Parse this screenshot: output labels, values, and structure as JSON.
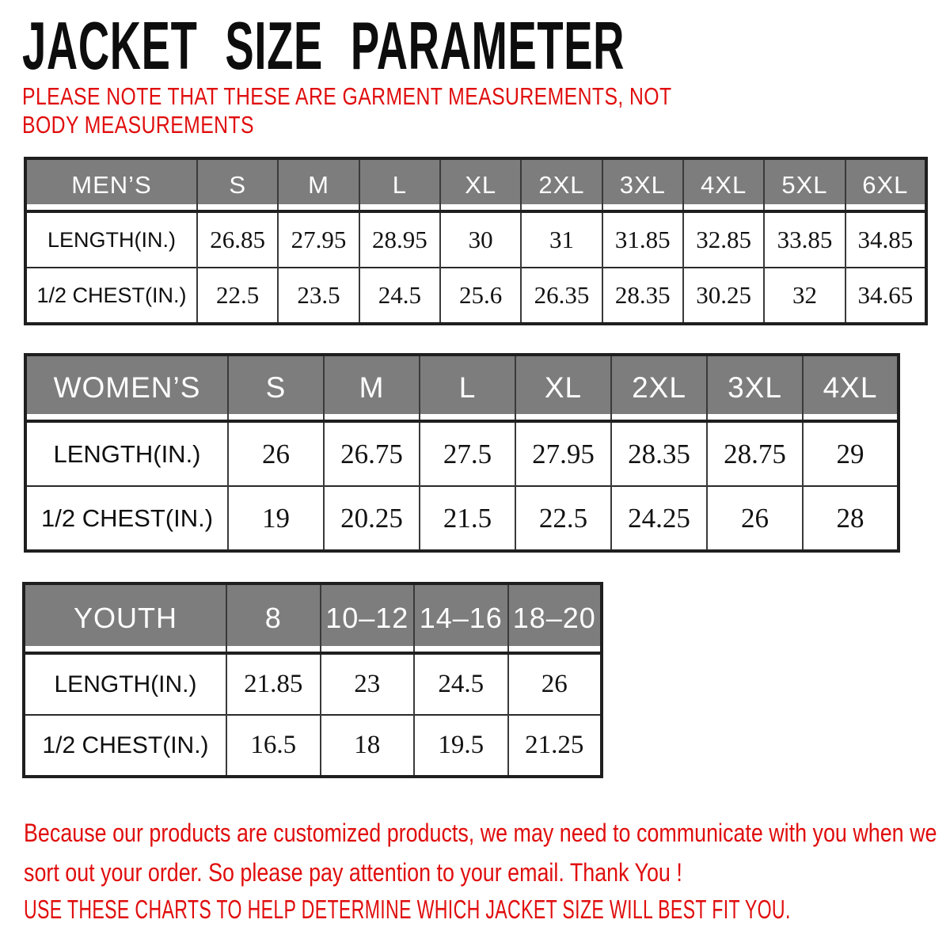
{
  "header": {
    "title": "JACKET SIZE PARAMETER",
    "note": "PLEASE NOTE THAT THESE ARE GARMENT MEASUREMENTS, NOT BODY MEASUREMENTS"
  },
  "chart_data": [
    {
      "type": "table",
      "id": "mens",
      "group_label": "MEN’S",
      "unit": "inches",
      "columns": [
        "S",
        "M",
        "L",
        "XL",
        "2XL",
        "3XL",
        "4XL",
        "5XL",
        "6XL"
      ],
      "rows": [
        {
          "label": "LENGTH(IN.)",
          "values": [
            26.85,
            27.95,
            28.95,
            30,
            31,
            31.85,
            32.85,
            33.85,
            34.85
          ]
        },
        {
          "label": "1/2 CHEST(IN.)",
          "values": [
            22.5,
            23.5,
            24.5,
            25.6,
            26.35,
            28.35,
            30.25,
            32,
            34.65
          ]
        }
      ]
    },
    {
      "type": "table",
      "id": "womens",
      "group_label": "WOMEN’S",
      "unit": "inches",
      "columns": [
        "S",
        "M",
        "L",
        "XL",
        "2XL",
        "3XL",
        "4XL"
      ],
      "rows": [
        {
          "label": "LENGTH(IN.)",
          "values": [
            26,
            26.75,
            27.5,
            27.95,
            28.35,
            28.75,
            29
          ]
        },
        {
          "label": "1/2 CHEST(IN.)",
          "values": [
            19,
            20.25,
            21.5,
            22.5,
            24.25,
            26,
            28
          ]
        }
      ]
    },
    {
      "type": "table",
      "id": "youth",
      "group_label": "YOUTH",
      "unit": "inches",
      "columns": [
        "8",
        "10–12",
        "14–16",
        "18–20"
      ],
      "rows": [
        {
          "label": "LENGTH(IN.)",
          "values": [
            21.85,
            23,
            24.5,
            26
          ]
        },
        {
          "label": "1/2 CHEST(IN.)",
          "values": [
            16.5,
            18,
            19.5,
            21.25
          ]
        }
      ]
    }
  ],
  "footer": {
    "line1": "Because our products are customized products, we may need to communicate with you when we sort out your order. So please pay attention to your email. Thank You !",
    "line2": "USE THESE CHARTS TO HELP DETERMINE WHICH JACKET SIZE WILL BEST FIT YOU."
  },
  "colors": {
    "header_gray": "#7d7d7d",
    "accent_red": "#e00d0d",
    "border_dark": "#1f1f1f",
    "text_black": "#111111",
    "header_text": "#ffffff"
  }
}
